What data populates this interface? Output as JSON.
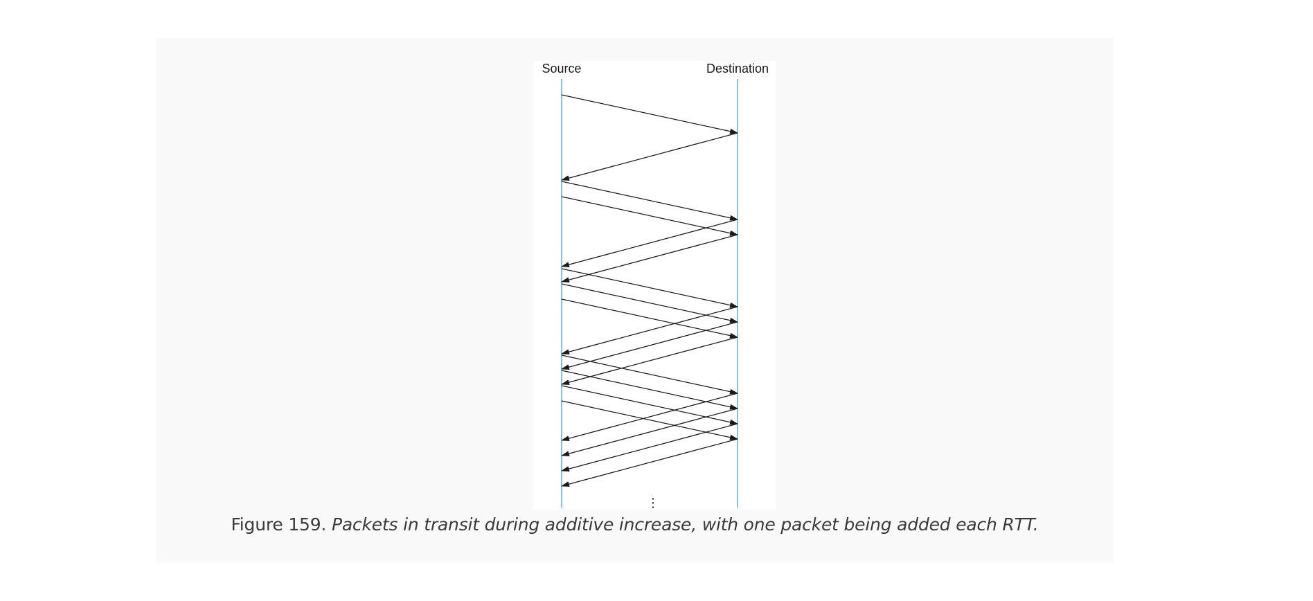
{
  "diagram": {
    "source_label": "Source",
    "destination_label": "Destination",
    "ellipsis": "⋮",
    "timeline_color": "#7fc4e3",
    "arrow_color": "#1a1a1a",
    "rounds": [
      {
        "packets": 1
      },
      {
        "packets": 2
      },
      {
        "packets": 3
      },
      {
        "packets": 4
      }
    ]
  },
  "caption": {
    "number": "Figure 159.",
    "text": "Packets in transit during additive increase, with one packet being added each RTT."
  }
}
